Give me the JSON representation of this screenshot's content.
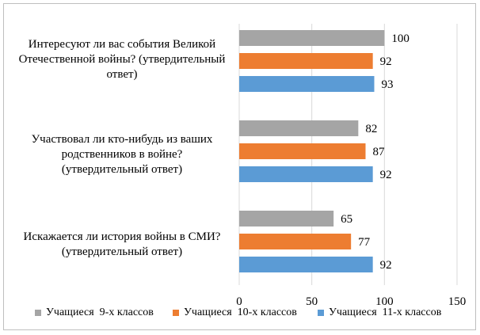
{
  "chart_data": {
    "type": "bar",
    "orientation": "horizontal",
    "categories": [
      "Интересуют ли вас события Великой Отечественной войны? (утвердительный ответ)",
      "Участвовал ли кто-нибудь из ваших родственников в войне? (утвердительный ответ)",
      "Искажается ли история войны в СМИ? (утвердительный ответ)"
    ],
    "category_lines": [
      [
        "Интересуют ли вас события Великой",
        "Отечественной войны? (утвердительный",
        "ответ)"
      ],
      [
        "Участвовал ли кто-нибудь из ваших",
        "родственников в войне?",
        "(утвердительный ответ)"
      ],
      [
        "Искажается ли история войны в СМИ?",
        "(утвердительный ответ)"
      ]
    ],
    "series": [
      {
        "name": "Учащиеся  9-х классов",
        "color": "#a5a5a5",
        "values": [
          100,
          82,
          65
        ]
      },
      {
        "name": "Учащиеся  10-х классов",
        "color": "#ed7d31",
        "values": [
          92,
          87,
          77
        ]
      },
      {
        "name": "Учащиеся  11-х классов",
        "color": "#5b9bd5",
        "values": [
          93,
          92,
          92
        ]
      }
    ],
    "xlim": [
      0,
      150
    ],
    "xticks": [
      "0",
      "50",
      "100",
      "150"
    ],
    "grid": true,
    "legend_position": "bottom"
  }
}
